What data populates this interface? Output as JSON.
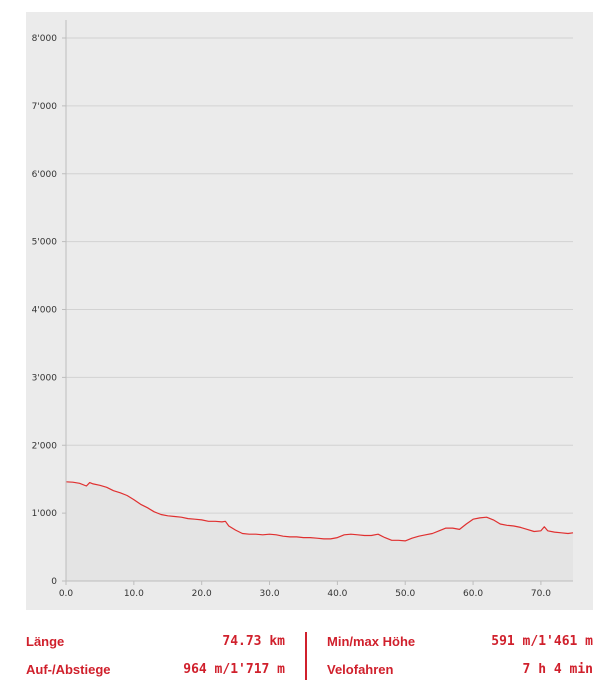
{
  "chart_data": {
    "type": "area",
    "title": "",
    "xlabel": "",
    "ylabel": "",
    "xlim": [
      0,
      74.73
    ],
    "ylim": [
      0,
      8000
    ],
    "y_ticks": [
      {
        "value": 0,
        "label": "0"
      },
      {
        "value": 1000,
        "label": "1'000"
      },
      {
        "value": 2000,
        "label": "2'000"
      },
      {
        "value": 3000,
        "label": "3'000"
      },
      {
        "value": 4000,
        "label": "4'000"
      },
      {
        "value": 5000,
        "label": "5'000"
      },
      {
        "value": 6000,
        "label": "6'000"
      },
      {
        "value": 7000,
        "label": "7'000"
      },
      {
        "value": 8000,
        "label": "8'000"
      }
    ],
    "x_ticks": [
      {
        "value": 0,
        "label": "0.0"
      },
      {
        "value": 10,
        "label": "10.0"
      },
      {
        "value": 20,
        "label": "20.0"
      },
      {
        "value": 30,
        "label": "30.0"
      },
      {
        "value": 40,
        "label": "40.0"
      },
      {
        "value": 50,
        "label": "50.0"
      },
      {
        "value": 60,
        "label": "60.0"
      },
      {
        "value": 70,
        "label": "70.0"
      }
    ],
    "grid": true,
    "series": [
      {
        "color": "#e03030",
        "fill": "#e4e4e4",
        "x": [
          0,
          1,
          2,
          3,
          3.5,
          4,
          5,
          6,
          7,
          8,
          9,
          10,
          11,
          12,
          13,
          14,
          15,
          16,
          17,
          18,
          19,
          20,
          21,
          22,
          23,
          23.5,
          24,
          25,
          26,
          27,
          28,
          29,
          30,
          31,
          32,
          33,
          34,
          35,
          36,
          37,
          38,
          39,
          40,
          41,
          42,
          43,
          44,
          45,
          46,
          47,
          48,
          49,
          50,
          51,
          52,
          53,
          54,
          55,
          56,
          57,
          58,
          59,
          60,
          61,
          62,
          63,
          64,
          65,
          66,
          67,
          68,
          69,
          70,
          70.5,
          71,
          72,
          73,
          74,
          74.73
        ],
        "y": [
          1461,
          1455,
          1440,
          1400,
          1450,
          1430,
          1410,
          1380,
          1330,
          1300,
          1260,
          1200,
          1130,
          1080,
          1020,
          980,
          960,
          950,
          940,
          920,
          910,
          900,
          880,
          880,
          870,
          880,
          810,
          750,
          700,
          690,
          690,
          680,
          690,
          680,
          660,
          650,
          650,
          640,
          640,
          630,
          620,
          620,
          640,
          680,
          690,
          680,
          670,
          670,
          690,
          640,
          600,
          600,
          591,
          630,
          660,
          680,
          700,
          740,
          780,
          780,
          760,
          840,
          910,
          930,
          940,
          900,
          840,
          820,
          810,
          790,
          760,
          730,
          740,
          800,
          740,
          720,
          710,
          700,
          710
        ]
      }
    ]
  },
  "stats": {
    "length_label": "Länge",
    "length_value": "74.73 km",
    "ascent_label": "Auf-/Abstiege",
    "ascent_value": "964 m/1'717 m",
    "minmax_label": "Min/max Höhe",
    "minmax_value": "591 m/1'461 m",
    "bike_label": "Velofahren",
    "bike_value": "7 h 4 min"
  }
}
